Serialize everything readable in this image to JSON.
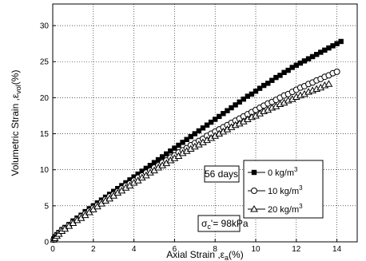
{
  "chart_data": {
    "type": "scatter",
    "xlabel": {
      "main": "Axial Strain ,ε",
      "sub": "a",
      "tail": "(%)"
    },
    "ylabel": {
      "main": "Volumetric Strain ,ε",
      "sub": "vol",
      "tail": "(%)"
    },
    "xlim": [
      0,
      15
    ],
    "ylim": [
      0,
      33
    ],
    "x_ticks": [
      0,
      2,
      4,
      6,
      8,
      10,
      12,
      14
    ],
    "y_ticks": [
      0,
      5,
      10,
      15,
      20,
      25,
      30
    ],
    "grid": true,
    "legend_position": "bottom-right",
    "annotations": {
      "days": "56 days",
      "stress": {
        "main": "σ",
        "sub": "c",
        "tail": "'= 98kPa"
      }
    },
    "series": [
      {
        "name": "0 kg/m",
        "name_sup": "3",
        "marker": "filled-square",
        "points": [
          [
            0.05,
            0.4
          ],
          [
            0.1,
            0.7
          ],
          [
            0.2,
            1.0
          ],
          [
            0.3,
            1.3
          ],
          [
            0.45,
            1.7
          ],
          [
            0.6,
            2.0
          ],
          [
            0.8,
            2.4
          ],
          [
            1.0,
            2.9
          ],
          [
            1.2,
            3.3
          ],
          [
            1.4,
            3.7
          ],
          [
            1.6,
            4.2
          ],
          [
            1.8,
            4.6
          ],
          [
            2.0,
            5.0
          ],
          [
            2.2,
            5.4
          ],
          [
            2.4,
            5.8
          ],
          [
            2.6,
            6.2
          ],
          [
            2.8,
            6.6
          ],
          [
            3.0,
            7.0
          ],
          [
            3.2,
            7.4
          ],
          [
            3.4,
            7.8
          ],
          [
            3.6,
            8.2
          ],
          [
            3.8,
            8.6
          ],
          [
            4.0,
            9.0
          ],
          [
            4.2,
            9.4
          ],
          [
            4.4,
            9.8
          ],
          [
            4.6,
            10.2
          ],
          [
            4.8,
            10.6
          ],
          [
            5.0,
            11.0
          ],
          [
            5.2,
            11.4
          ],
          [
            5.4,
            11.8
          ],
          [
            5.6,
            12.2
          ],
          [
            5.8,
            12.6
          ],
          [
            6.0,
            13.0
          ],
          [
            6.2,
            13.4
          ],
          [
            6.4,
            13.8
          ],
          [
            6.6,
            14.2
          ],
          [
            6.8,
            14.6
          ],
          [
            7.0,
            15.0
          ],
          [
            7.2,
            15.4
          ],
          [
            7.4,
            15.8
          ],
          [
            7.6,
            16.2
          ],
          [
            7.8,
            16.6
          ],
          [
            8.0,
            17.0
          ],
          [
            8.2,
            17.4
          ],
          [
            8.4,
            17.8
          ],
          [
            8.6,
            18.2
          ],
          [
            8.8,
            18.6
          ],
          [
            9.0,
            19.0
          ],
          [
            9.2,
            19.4
          ],
          [
            9.4,
            19.8
          ],
          [
            9.6,
            20.2
          ],
          [
            9.8,
            20.5
          ],
          [
            10.0,
            20.9
          ],
          [
            10.2,
            21.3
          ],
          [
            10.4,
            21.7
          ],
          [
            10.6,
            22.0
          ],
          [
            10.8,
            22.4
          ],
          [
            11.0,
            22.8
          ],
          [
            11.2,
            23.1
          ],
          [
            11.4,
            23.5
          ],
          [
            11.6,
            23.8
          ],
          [
            11.8,
            24.2
          ],
          [
            12.0,
            24.5
          ],
          [
            12.2,
            24.8
          ],
          [
            12.4,
            25.1
          ],
          [
            12.6,
            25.4
          ],
          [
            12.8,
            25.7
          ],
          [
            13.0,
            26.0
          ],
          [
            13.2,
            26.3
          ],
          [
            13.4,
            26.6
          ],
          [
            13.6,
            26.9
          ],
          [
            13.8,
            27.2
          ],
          [
            14.0,
            27.5
          ],
          [
            14.2,
            27.8
          ]
        ]
      },
      {
        "name": "10 kg/m",
        "name_sup": "3",
        "marker": "open-circle",
        "points": [
          [
            0.05,
            0.3
          ],
          [
            0.1,
            0.6
          ],
          [
            0.2,
            0.9
          ],
          [
            0.3,
            1.2
          ],
          [
            0.45,
            1.6
          ],
          [
            0.6,
            1.9
          ],
          [
            0.8,
            2.3
          ],
          [
            1.0,
            2.7
          ],
          [
            1.2,
            3.1
          ],
          [
            1.4,
            3.5
          ],
          [
            1.6,
            3.9
          ],
          [
            1.8,
            4.3
          ],
          [
            2.0,
            4.7
          ],
          [
            2.2,
            5.1
          ],
          [
            2.4,
            5.5
          ],
          [
            2.6,
            5.9
          ],
          [
            2.8,
            6.3
          ],
          [
            3.0,
            6.6
          ],
          [
            3.2,
            7.0
          ],
          [
            3.4,
            7.4
          ],
          [
            3.6,
            7.8
          ],
          [
            3.8,
            8.1
          ],
          [
            4.0,
            8.5
          ],
          [
            4.2,
            8.9
          ],
          [
            4.4,
            9.2
          ],
          [
            4.6,
            9.6
          ],
          [
            4.8,
            9.9
          ],
          [
            5.0,
            10.3
          ],
          [
            5.2,
            10.6
          ],
          [
            5.4,
            11.0
          ],
          [
            5.6,
            11.3
          ],
          [
            5.8,
            11.7
          ],
          [
            6.0,
            12.0
          ],
          [
            6.2,
            12.4
          ],
          [
            6.4,
            12.7
          ],
          [
            6.6,
            13.0
          ],
          [
            6.8,
            13.4
          ],
          [
            7.0,
            13.7
          ],
          [
            7.2,
            14.0
          ],
          [
            7.4,
            14.3
          ],
          [
            7.6,
            14.7
          ],
          [
            7.8,
            15.0
          ],
          [
            8.0,
            15.3
          ],
          [
            8.2,
            15.6
          ],
          [
            8.4,
            15.9
          ],
          [
            8.6,
            16.2
          ],
          [
            8.8,
            16.5
          ],
          [
            9.0,
            16.8
          ],
          [
            9.2,
            17.1
          ],
          [
            9.4,
            17.4
          ],
          [
            9.6,
            17.7
          ],
          [
            9.8,
            18.0
          ],
          [
            10.0,
            18.3
          ],
          [
            10.2,
            18.6
          ],
          [
            10.4,
            18.9
          ],
          [
            10.6,
            19.2
          ],
          [
            10.8,
            19.4
          ],
          [
            11.0,
            19.7
          ],
          [
            11.2,
            20.0
          ],
          [
            11.4,
            20.3
          ],
          [
            11.6,
            20.5
          ],
          [
            11.8,
            20.8
          ],
          [
            12.0,
            21.1
          ],
          [
            12.2,
            21.4
          ],
          [
            12.4,
            21.6
          ],
          [
            12.6,
            21.9
          ],
          [
            12.8,
            22.1
          ],
          [
            13.0,
            22.4
          ],
          [
            13.2,
            22.6
          ],
          [
            13.4,
            22.9
          ],
          [
            13.6,
            23.1
          ],
          [
            13.8,
            23.4
          ],
          [
            14.0,
            23.6
          ]
        ]
      },
      {
        "name": "20 kg/m",
        "name_sup": "3",
        "marker": "open-triangle",
        "points": [
          [
            0.05,
            0.3
          ],
          [
            0.1,
            0.5
          ],
          [
            0.2,
            0.8
          ],
          [
            0.3,
            1.1
          ],
          [
            0.45,
            1.5
          ],
          [
            0.6,
            1.8
          ],
          [
            0.8,
            2.2
          ],
          [
            1.0,
            2.6
          ],
          [
            1.2,
            3.0
          ],
          [
            1.4,
            3.3
          ],
          [
            1.6,
            3.7
          ],
          [
            1.8,
            4.1
          ],
          [
            2.0,
            4.5
          ],
          [
            2.2,
            4.9
          ],
          [
            2.4,
            5.3
          ],
          [
            2.6,
            5.7
          ],
          [
            2.8,
            6.0
          ],
          [
            3.0,
            6.4
          ],
          [
            3.2,
            6.8
          ],
          [
            3.4,
            7.1
          ],
          [
            3.6,
            7.5
          ],
          [
            3.8,
            7.8
          ],
          [
            4.0,
            8.2
          ],
          [
            4.2,
            8.5
          ],
          [
            4.4,
            8.9
          ],
          [
            4.6,
            9.2
          ],
          [
            4.8,
            9.6
          ],
          [
            5.0,
            9.9
          ],
          [
            5.2,
            10.3
          ],
          [
            5.4,
            10.6
          ],
          [
            5.6,
            10.9
          ],
          [
            5.8,
            11.3
          ],
          [
            6.0,
            11.6
          ],
          [
            6.2,
            11.9
          ],
          [
            6.4,
            12.3
          ],
          [
            6.6,
            12.6
          ],
          [
            6.8,
            12.9
          ],
          [
            7.0,
            13.2
          ],
          [
            7.2,
            13.5
          ],
          [
            7.4,
            13.8
          ],
          [
            7.6,
            14.1
          ],
          [
            7.8,
            14.4
          ],
          [
            8.0,
            14.7
          ],
          [
            8.2,
            15.0
          ],
          [
            8.4,
            15.3
          ],
          [
            8.6,
            15.6
          ],
          [
            8.8,
            15.9
          ],
          [
            9.0,
            16.2
          ],
          [
            9.2,
            16.4
          ],
          [
            9.4,
            16.7
          ],
          [
            9.6,
            17.0
          ],
          [
            9.8,
            17.3
          ],
          [
            10.0,
            17.5
          ],
          [
            10.2,
            17.8
          ],
          [
            10.4,
            18.1
          ],
          [
            10.6,
            18.3
          ],
          [
            10.8,
            18.6
          ],
          [
            11.0,
            18.8
          ],
          [
            11.2,
            19.1
          ],
          [
            11.4,
            19.3
          ],
          [
            11.6,
            19.6
          ],
          [
            11.8,
            19.8
          ],
          [
            12.0,
            20.1
          ],
          [
            12.2,
            20.3
          ],
          [
            12.4,
            20.5
          ],
          [
            12.6,
            20.8
          ],
          [
            12.8,
            21.0
          ],
          [
            13.0,
            21.2
          ],
          [
            13.2,
            21.4
          ],
          [
            13.4,
            21.7
          ],
          [
            13.6,
            21.9
          ]
        ]
      }
    ]
  }
}
